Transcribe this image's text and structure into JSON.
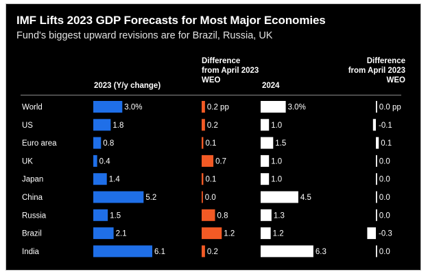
{
  "title": "IMF Lifts 2023 GDP Forecasts for Most Major Economies",
  "subtitle": "Fund's biggest upward revisions are for Brazil, Russia, UK",
  "colors": {
    "gdp2023": "#1f6fe8",
    "diff2023": "#f25a25",
    "gdp2024": "#ffffff",
    "diff2024": "#ffffff",
    "background": "#000000"
  },
  "chart_data": {
    "type": "bar",
    "categories": [
      "World",
      "US",
      "Euro area",
      "UK",
      "Japan",
      "China",
      "Russia",
      "Brazil",
      "India"
    ],
    "columns": [
      {
        "header": "2023 (Y/y change)",
        "values": [
          3.0,
          1.8,
          0.8,
          0.4,
          1.4,
          5.2,
          1.5,
          2.1,
          6.1
        ],
        "labels": [
          "3.0%",
          "1.8",
          "0.8",
          "0.4",
          "1.4",
          "5.2",
          "1.5",
          "2.1",
          "6.1"
        ]
      },
      {
        "header": "Difference from April 2023 WEO",
        "values": [
          0.2,
          0.2,
          0.1,
          0.7,
          0.1,
          0.0,
          0.8,
          1.2,
          0.2
        ],
        "labels": [
          "0.2 pp",
          "0.2",
          "0.1",
          "0.7",
          "0.1",
          "0.0",
          "0.8",
          "1.2",
          "0.2"
        ]
      },
      {
        "header": "2024",
        "values": [
          3.0,
          1.0,
          1.5,
          1.0,
          1.0,
          4.5,
          1.3,
          1.2,
          6.3
        ],
        "labels": [
          "3.0%",
          "1.0",
          "1.5",
          "1.0",
          "1.0",
          "4.5",
          "1.3",
          "1.2",
          "6.3"
        ]
      },
      {
        "header": "Difference from April 2023 WEO",
        "values": [
          0.0,
          -0.1,
          0.1,
          0.0,
          0.0,
          0.0,
          0.0,
          -0.3,
          0.0
        ],
        "labels": [
          "0.0 pp",
          "-0.1",
          "0.1",
          "0.0",
          "0.0",
          "0.0",
          "0.0",
          "-0.3",
          "0.0"
        ]
      }
    ]
  }
}
